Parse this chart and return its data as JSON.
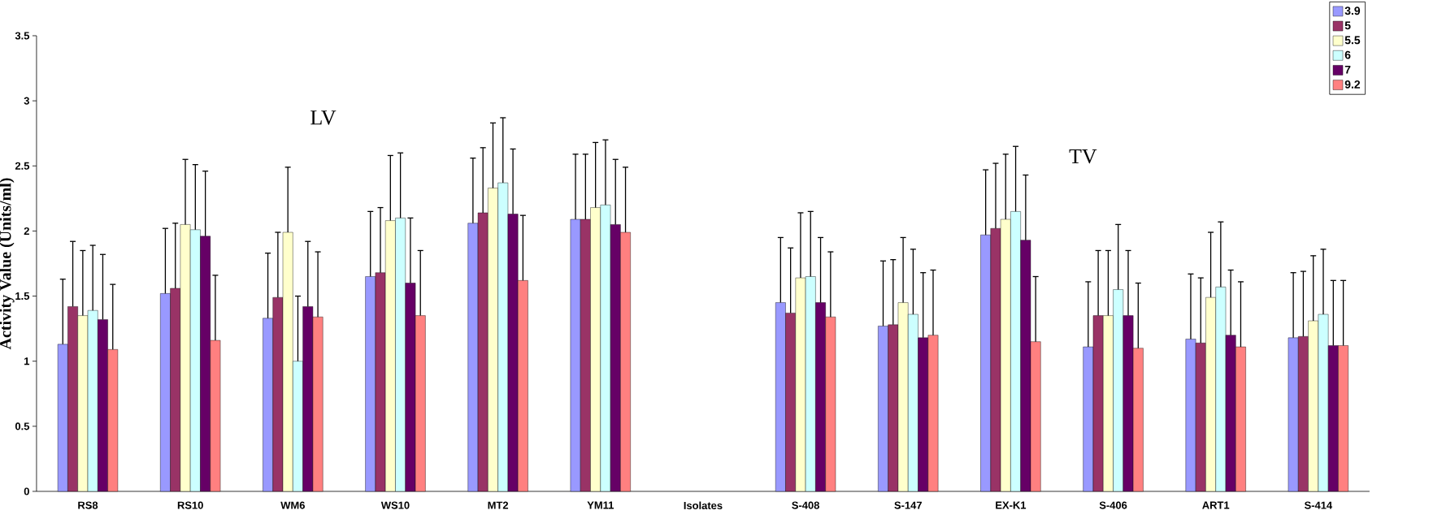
{
  "chart_data": {
    "type": "bar",
    "ylabel": "Activity Value (Units/ml)",
    "categories": [
      "RS8",
      "RS10",
      "WM6",
      "WS10",
      "MT2",
      "YM11",
      "Isolates",
      "S-408",
      "S-147",
      "EX-K1",
      "S-406",
      "ART1",
      "S-414"
    ],
    "series": [
      {
        "name": "3.9",
        "color": "#9999ff",
        "values": [
          1.13,
          1.52,
          1.33,
          1.65,
          2.06,
          2.09,
          null,
          1.45,
          1.27,
          1.97,
          1.11,
          1.17,
          1.18
        ],
        "errors": [
          [
            1.13,
            1.63
          ],
          [
            1.52,
            2.02
          ],
          [
            1.33,
            1.83
          ],
          [
            1.65,
            2.15
          ],
          [
            2.06,
            2.56
          ],
          [
            2.09,
            2.59
          ],
          null,
          [
            1.45,
            1.95
          ],
          [
            1.27,
            1.77
          ],
          [
            1.97,
            2.47
          ],
          [
            1.11,
            1.61
          ],
          [
            1.17,
            1.67
          ],
          [
            1.18,
            1.68
          ]
        ]
      },
      {
        "name": "5",
        "color": "#993366",
        "values": [
          1.42,
          1.56,
          1.49,
          1.68,
          2.14,
          2.09,
          null,
          1.37,
          1.28,
          2.02,
          1.35,
          1.14,
          1.19
        ],
        "errors": [
          [
            1.42,
            1.92
          ],
          [
            1.56,
            2.06
          ],
          [
            1.49,
            1.99
          ],
          [
            1.68,
            2.18
          ],
          [
            2.14,
            2.64
          ],
          [
            2.09,
            2.59
          ],
          null,
          [
            1.37,
            1.87
          ],
          [
            1.28,
            1.78
          ],
          [
            2.02,
            2.52
          ],
          [
            1.35,
            1.85
          ],
          [
            1.14,
            1.64
          ],
          [
            1.19,
            1.69
          ]
        ]
      },
      {
        "name": "5.5",
        "color": "#ffffcc",
        "values": [
          1.35,
          2.05,
          1.99,
          2.08,
          2.33,
          2.18,
          null,
          1.64,
          1.45,
          2.09,
          1.35,
          1.49,
          1.31
        ],
        "errors": [
          [
            1.35,
            1.85
          ],
          [
            2.05,
            2.55
          ],
          [
            1.99,
            2.49
          ],
          [
            2.08,
            2.58
          ],
          [
            2.33,
            2.83
          ],
          [
            2.18,
            2.68
          ],
          null,
          [
            1.64,
            2.14
          ],
          [
            1.45,
            1.95
          ],
          [
            2.09,
            2.59
          ],
          [
            1.35,
            1.85
          ],
          [
            1.49,
            1.99
          ],
          [
            1.31,
            1.81
          ]
        ]
      },
      {
        "name": "6",
        "color": "#ccffff",
        "values": [
          1.39,
          2.01,
          1.0,
          2.1,
          2.37,
          2.2,
          null,
          1.65,
          1.36,
          2.15,
          1.55,
          1.57,
          1.36
        ],
        "errors": [
          [
            1.39,
            1.89
          ],
          [
            2.01,
            2.51
          ],
          [
            1.0,
            1.5
          ],
          [
            2.1,
            2.6
          ],
          [
            2.37,
            2.87
          ],
          [
            2.2,
            2.7
          ],
          null,
          [
            1.65,
            2.15
          ],
          [
            1.36,
            1.86
          ],
          [
            2.15,
            2.65
          ],
          [
            1.55,
            2.05
          ],
          [
            1.57,
            2.07
          ],
          [
            1.36,
            1.86
          ]
        ]
      },
      {
        "name": "7",
        "color": "#660066",
        "values": [
          1.32,
          1.96,
          1.42,
          1.6,
          2.13,
          2.05,
          null,
          1.45,
          1.18,
          1.93,
          1.35,
          1.2,
          1.12
        ],
        "errors": [
          [
            1.32,
            1.82
          ],
          [
            1.96,
            2.46
          ],
          [
            1.42,
            1.92
          ],
          [
            1.6,
            2.1
          ],
          [
            2.13,
            2.63
          ],
          [
            2.05,
            2.55
          ],
          null,
          [
            1.45,
            1.95
          ],
          [
            1.18,
            1.68
          ],
          [
            1.93,
            2.43
          ],
          [
            1.35,
            1.85
          ],
          [
            1.2,
            1.7
          ],
          [
            1.12,
            1.62
          ]
        ]
      },
      {
        "name": "9.2",
        "color": "#ff8080",
        "values": [
          1.09,
          1.16,
          1.34,
          1.35,
          1.62,
          1.99,
          null,
          1.34,
          1.2,
          1.15,
          1.1,
          1.11,
          1.12
        ],
        "errors": [
          [
            1.09,
            1.59
          ],
          [
            1.16,
            1.66
          ],
          [
            1.34,
            1.84
          ],
          [
            1.35,
            1.85
          ],
          [
            1.62,
            2.12
          ],
          [
            1.99,
            2.49
          ],
          null,
          [
            1.34,
            1.84
          ],
          [
            1.2,
            1.7
          ],
          [
            1.15,
            1.65
          ],
          [
            1.1,
            1.6
          ],
          [
            1.11,
            1.61
          ],
          [
            1.12,
            1.62
          ]
        ]
      }
    ],
    "ylim": [
      0,
      3.5
    ],
    "yticks": [
      0,
      0.5,
      1,
      1.5,
      2,
      2.5,
      3,
      3.5
    ],
    "legend": "top right",
    "annotations": [
      "LV",
      "TV"
    ]
  }
}
